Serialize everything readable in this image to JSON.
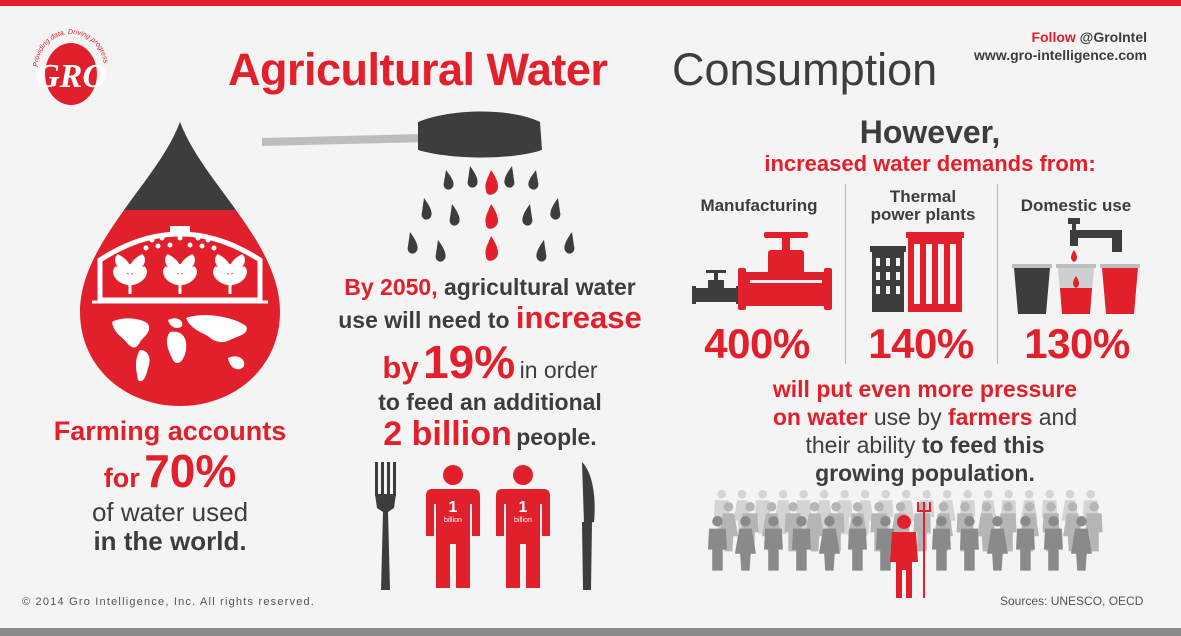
{
  "header": {
    "title_part1": "Agricultural Water",
    "title_part2": "Consumption",
    "follow_prefix": "Follow",
    "follow_handle": "@GroIntel",
    "website": "www.gro-intelligence.com"
  },
  "logo": {
    "text": "GRO",
    "tagline": "Providing data. Driving progress"
  },
  "farming": {
    "line1": "Farming accounts",
    "for_word": "for",
    "percent": "70%",
    "line3": "of water used",
    "line4": "in the world."
  },
  "projection": {
    "year": "By 2050,",
    "text1": "agricultural water",
    "text2": "use will need to",
    "increase_word": "increase",
    "by_word": "by",
    "percent": "19%",
    "in_order": "in order",
    "text3": "to feed an additional",
    "billions": "2 billion",
    "people": "people."
  },
  "people_figures": [
    {
      "number": "1",
      "unit": "billion"
    },
    {
      "number": "1",
      "unit": "billion"
    }
  ],
  "however": {
    "heading": "However,",
    "subheading": "increased water demands from:"
  },
  "categories": [
    {
      "label": "Manufacturing",
      "percent": "400%"
    },
    {
      "label_line1": "Thermal",
      "label_line2": "power plants",
      "percent": "140%"
    },
    {
      "label": "Domestic use",
      "percent": "130%"
    }
  ],
  "pressure": {
    "l1": "will put even more pressure",
    "l2a": "on",
    "l2b": "water",
    "l2c": "use by",
    "l2d": "farmers",
    "l2e": "and",
    "l3a": "their ability",
    "l3b": "to feed this",
    "l4": "growing population."
  },
  "footer": {
    "copyright": "© 2014 Gro Intelligence, Inc. All rights reserved.",
    "sources": "Sources: UNESCO, OECD"
  },
  "colors": {
    "accent": "#e2202c",
    "dark": "#3d3d3f",
    "gray": "#8a8a8c",
    "light_gray": "#cfcfcf"
  }
}
